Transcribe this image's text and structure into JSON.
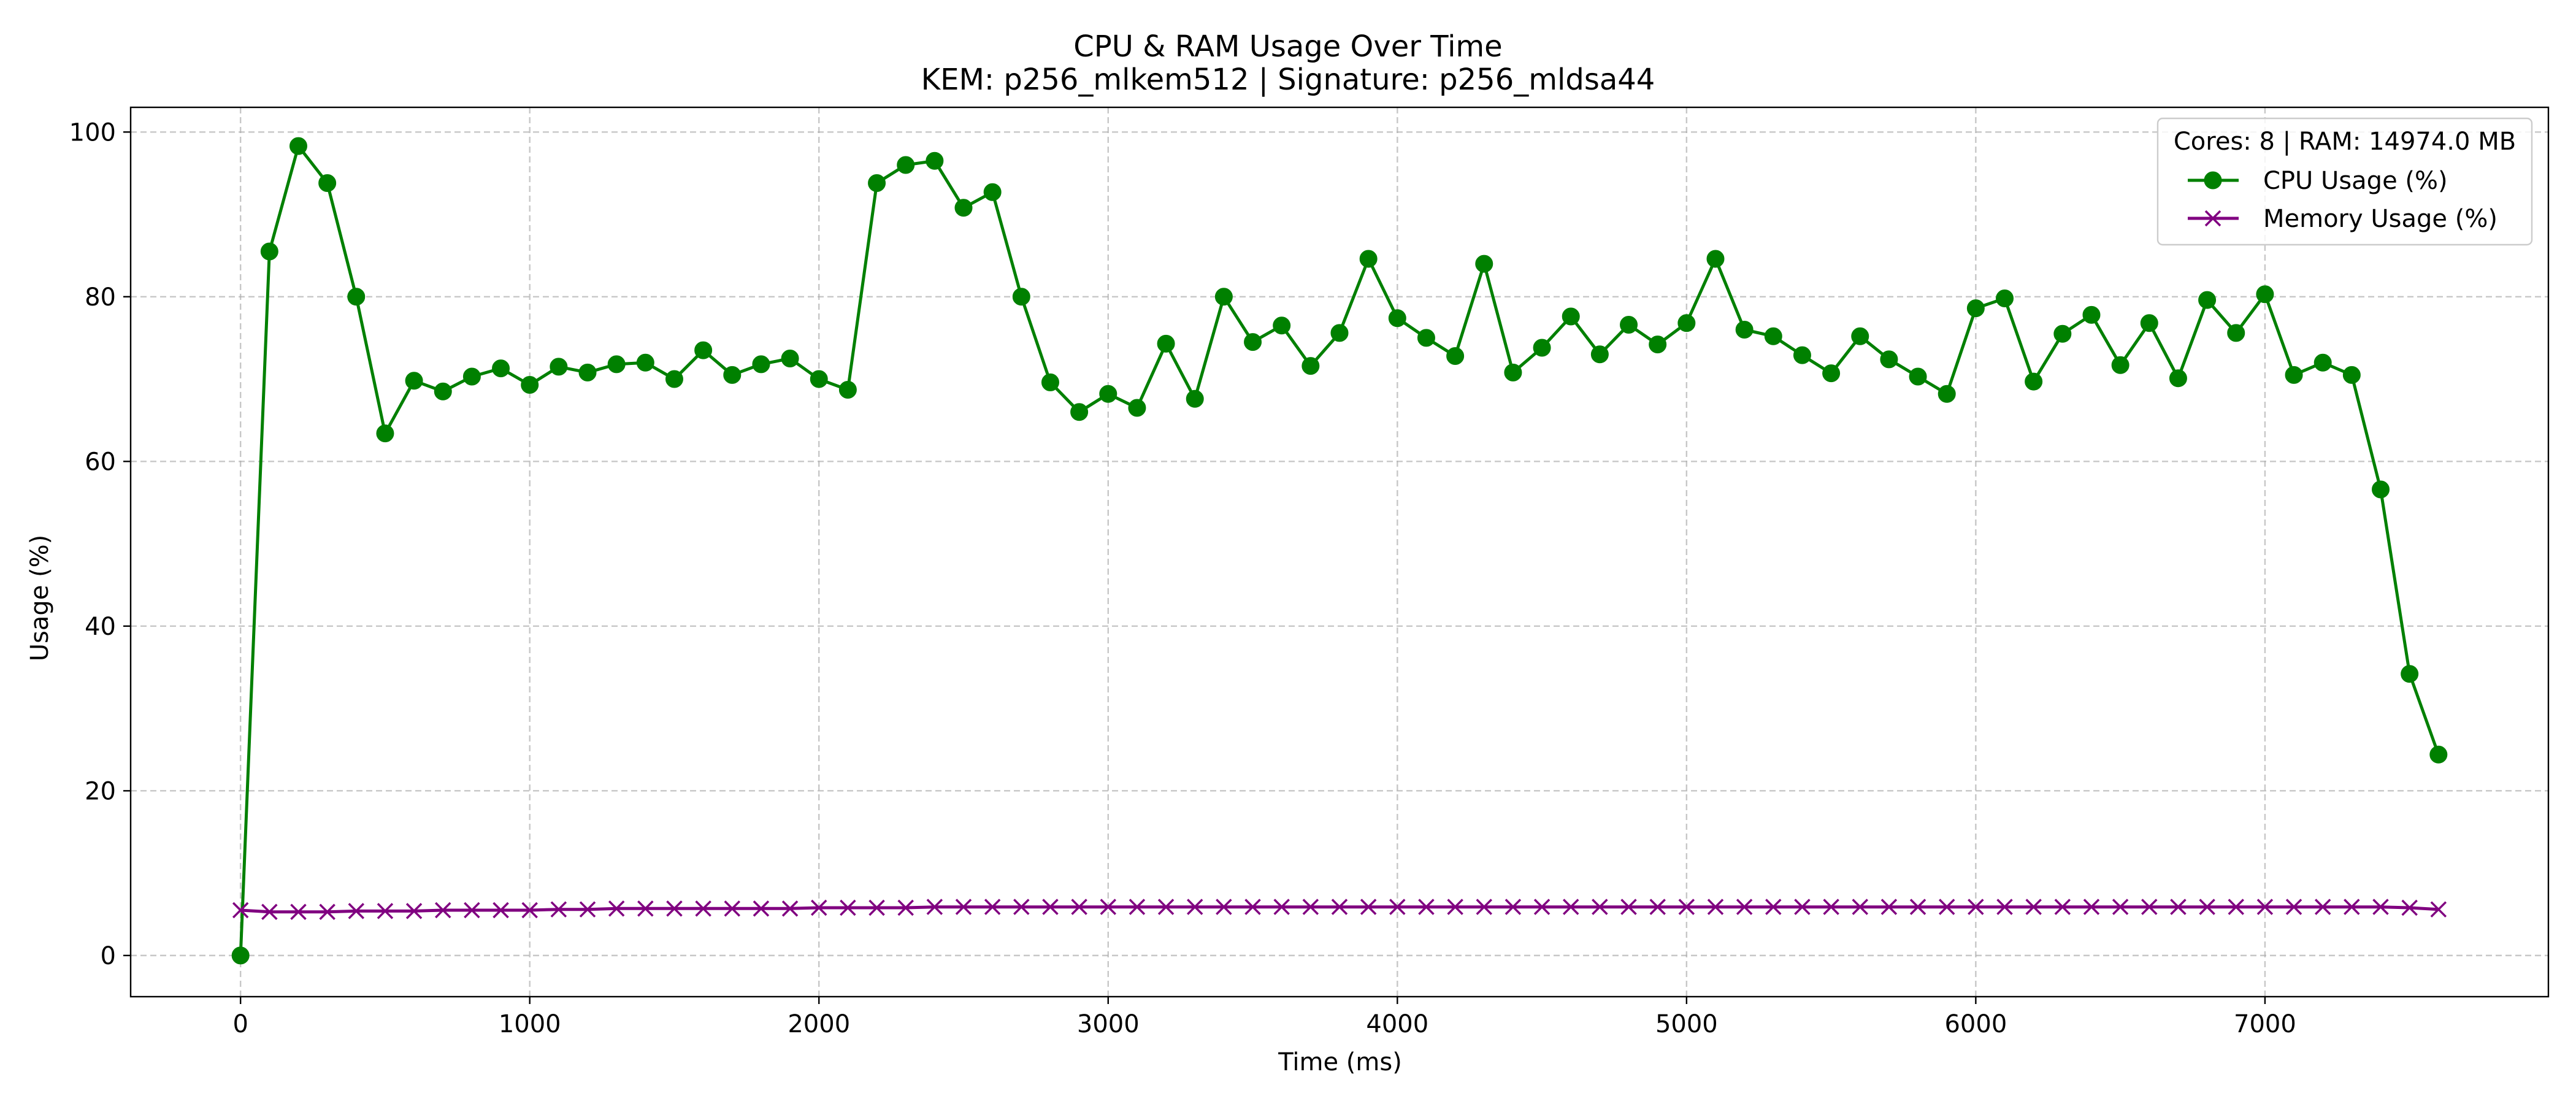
{
  "chart_data": {
    "type": "line",
    "title": "CPU & RAM Usage Over Time",
    "subtitle": "KEM: p256_mlkem512 | Signature: p256_mldsa44",
    "xlabel": "Time (ms)",
    "ylabel": "Usage (%)",
    "xlim": [
      -380,
      7980
    ],
    "ylim": [
      -5,
      103
    ],
    "xticks": [
      0,
      1000,
      2000,
      3000,
      4000,
      5000,
      6000,
      7000
    ],
    "yticks": [
      0,
      20,
      40,
      60,
      80,
      100
    ],
    "grid": true,
    "legend": {
      "placement": "top-right",
      "title": "Cores: 8 | RAM: 14974.0 MB"
    },
    "x": [
      0,
      100,
      200,
      300,
      400,
      500,
      600,
      700,
      800,
      900,
      1000,
      1100,
      1200,
      1300,
      1400,
      1500,
      1600,
      1700,
      1800,
      1900,
      2000,
      2100,
      2200,
      2300,
      2400,
      2500,
      2600,
      2700,
      2800,
      2900,
      3000,
      3100,
      3200,
      3300,
      3400,
      3500,
      3600,
      3700,
      3800,
      3900,
      4000,
      4100,
      4200,
      4300,
      4400,
      4500,
      4600,
      4700,
      4800,
      4900,
      5000,
      5100,
      5200,
      5300,
      5400,
      5500,
      5600,
      5700,
      5800,
      5900,
      6000,
      6100,
      6200,
      6300,
      6400,
      6500,
      6600,
      6700,
      6800,
      6900,
      7000,
      7100,
      7200,
      7300,
      7400,
      7500,
      7600
    ],
    "series": [
      {
        "name": "CPU Usage (%)",
        "color": "#008000",
        "marker": "circle",
        "values": [
          0,
          85.5,
          98.3,
          93.8,
          80.0,
          63.4,
          69.8,
          68.5,
          70.3,
          71.3,
          69.3,
          71.5,
          70.8,
          71.8,
          72.0,
          70.0,
          73.5,
          70.5,
          71.8,
          72.5,
          70.0,
          68.7,
          93.8,
          96.0,
          96.5,
          90.8,
          92.7,
          80.0,
          69.6,
          66.0,
          68.2,
          66.5,
          74.3,
          67.6,
          80.0,
          74.5,
          76.5,
          71.6,
          75.6,
          84.6,
          77.4,
          75.0,
          72.8,
          84.0,
          70.8,
          73.8,
          77.6,
          73.0,
          76.6,
          74.2,
          76.8,
          84.6,
          76.0,
          75.2,
          72.9,
          70.7,
          75.2,
          72.4,
          70.3,
          68.2,
          78.6,
          79.8,
          69.7,
          75.5,
          77.8,
          71.7,
          76.8,
          70.1,
          79.6,
          75.6,
          80.3,
          70.5,
          72.0,
          70.5,
          56.6,
          34.2,
          24.4
        ]
      },
      {
        "name": "Memory Usage (%)",
        "color": "#800080",
        "marker": "x",
        "values": [
          5.5,
          5.3,
          5.3,
          5.3,
          5.4,
          5.4,
          5.4,
          5.5,
          5.5,
          5.5,
          5.5,
          5.6,
          5.6,
          5.7,
          5.7,
          5.7,
          5.7,
          5.7,
          5.7,
          5.7,
          5.8,
          5.8,
          5.8,
          5.8,
          5.9,
          5.9,
          5.9,
          5.9,
          5.9,
          5.9,
          5.9,
          5.9,
          5.9,
          5.9,
          5.9,
          5.9,
          5.9,
          5.9,
          5.9,
          5.9,
          5.9,
          5.9,
          5.9,
          5.9,
          5.9,
          5.9,
          5.9,
          5.9,
          5.9,
          5.9,
          5.9,
          5.9,
          5.9,
          5.9,
          5.9,
          5.9,
          5.9,
          5.9,
          5.9,
          5.9,
          5.9,
          5.9,
          5.9,
          5.9,
          5.9,
          5.9,
          5.9,
          5.9,
          5.9,
          5.9,
          5.9,
          5.9,
          5.9,
          5.9,
          5.9,
          5.8,
          5.6
        ]
      }
    ]
  }
}
